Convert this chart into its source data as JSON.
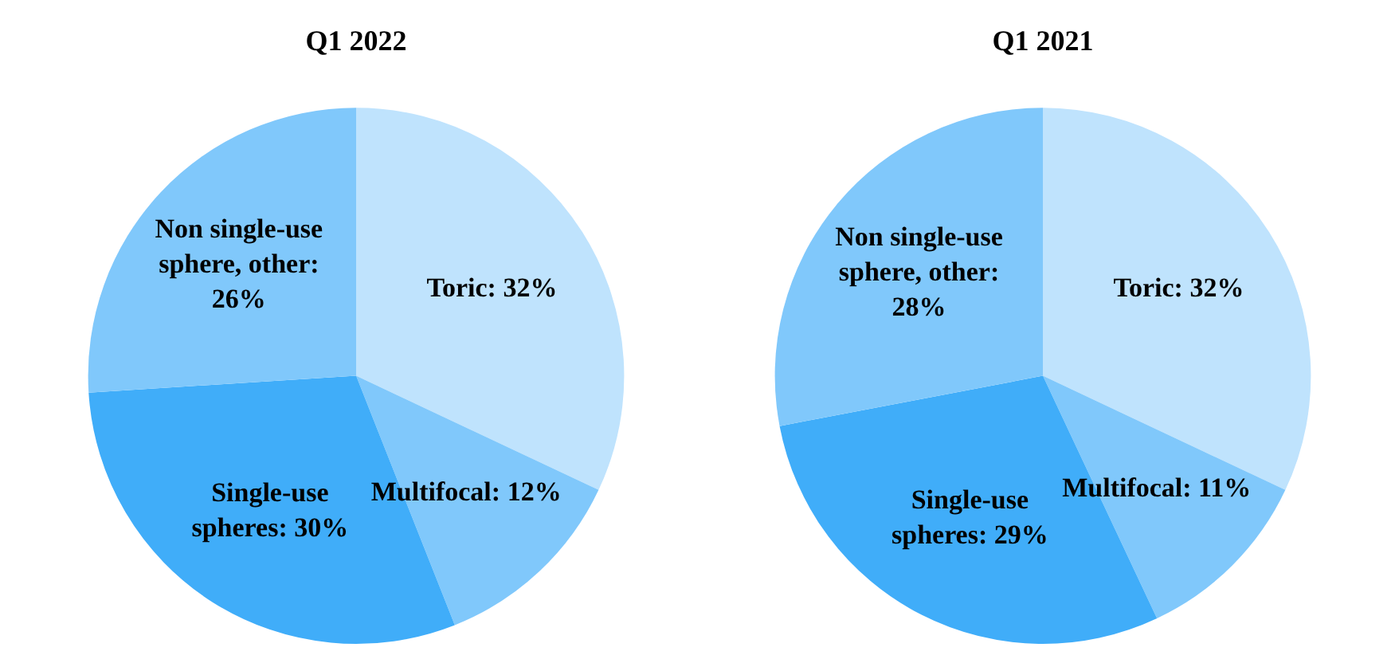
{
  "chart_data": [
    {
      "type": "pie",
      "title": "Q1 2022",
      "categories": [
        "Toric: 32%",
        "Multifocal: 12%",
        "Single-use spheres: 30%",
        "Non single-use sphere, other: 26%"
      ],
      "values": [
        32,
        12,
        30,
        26
      ],
      "colors": [
        "#bfe3fd",
        "#80c8fb",
        "#40adf9",
        "#80c8fb"
      ]
    },
    {
      "type": "pie",
      "title": "Q1 2021",
      "categories": [
        "Toric: 32%",
        "Multifocal: 11%",
        "Single-use spheres: 29%",
        "Non single-use sphere, other: 28%"
      ],
      "values": [
        32,
        11,
        29,
        28
      ],
      "colors": [
        "#bfe3fd",
        "#80c8fb",
        "#40adf9",
        "#80c8fb"
      ]
    }
  ]
}
